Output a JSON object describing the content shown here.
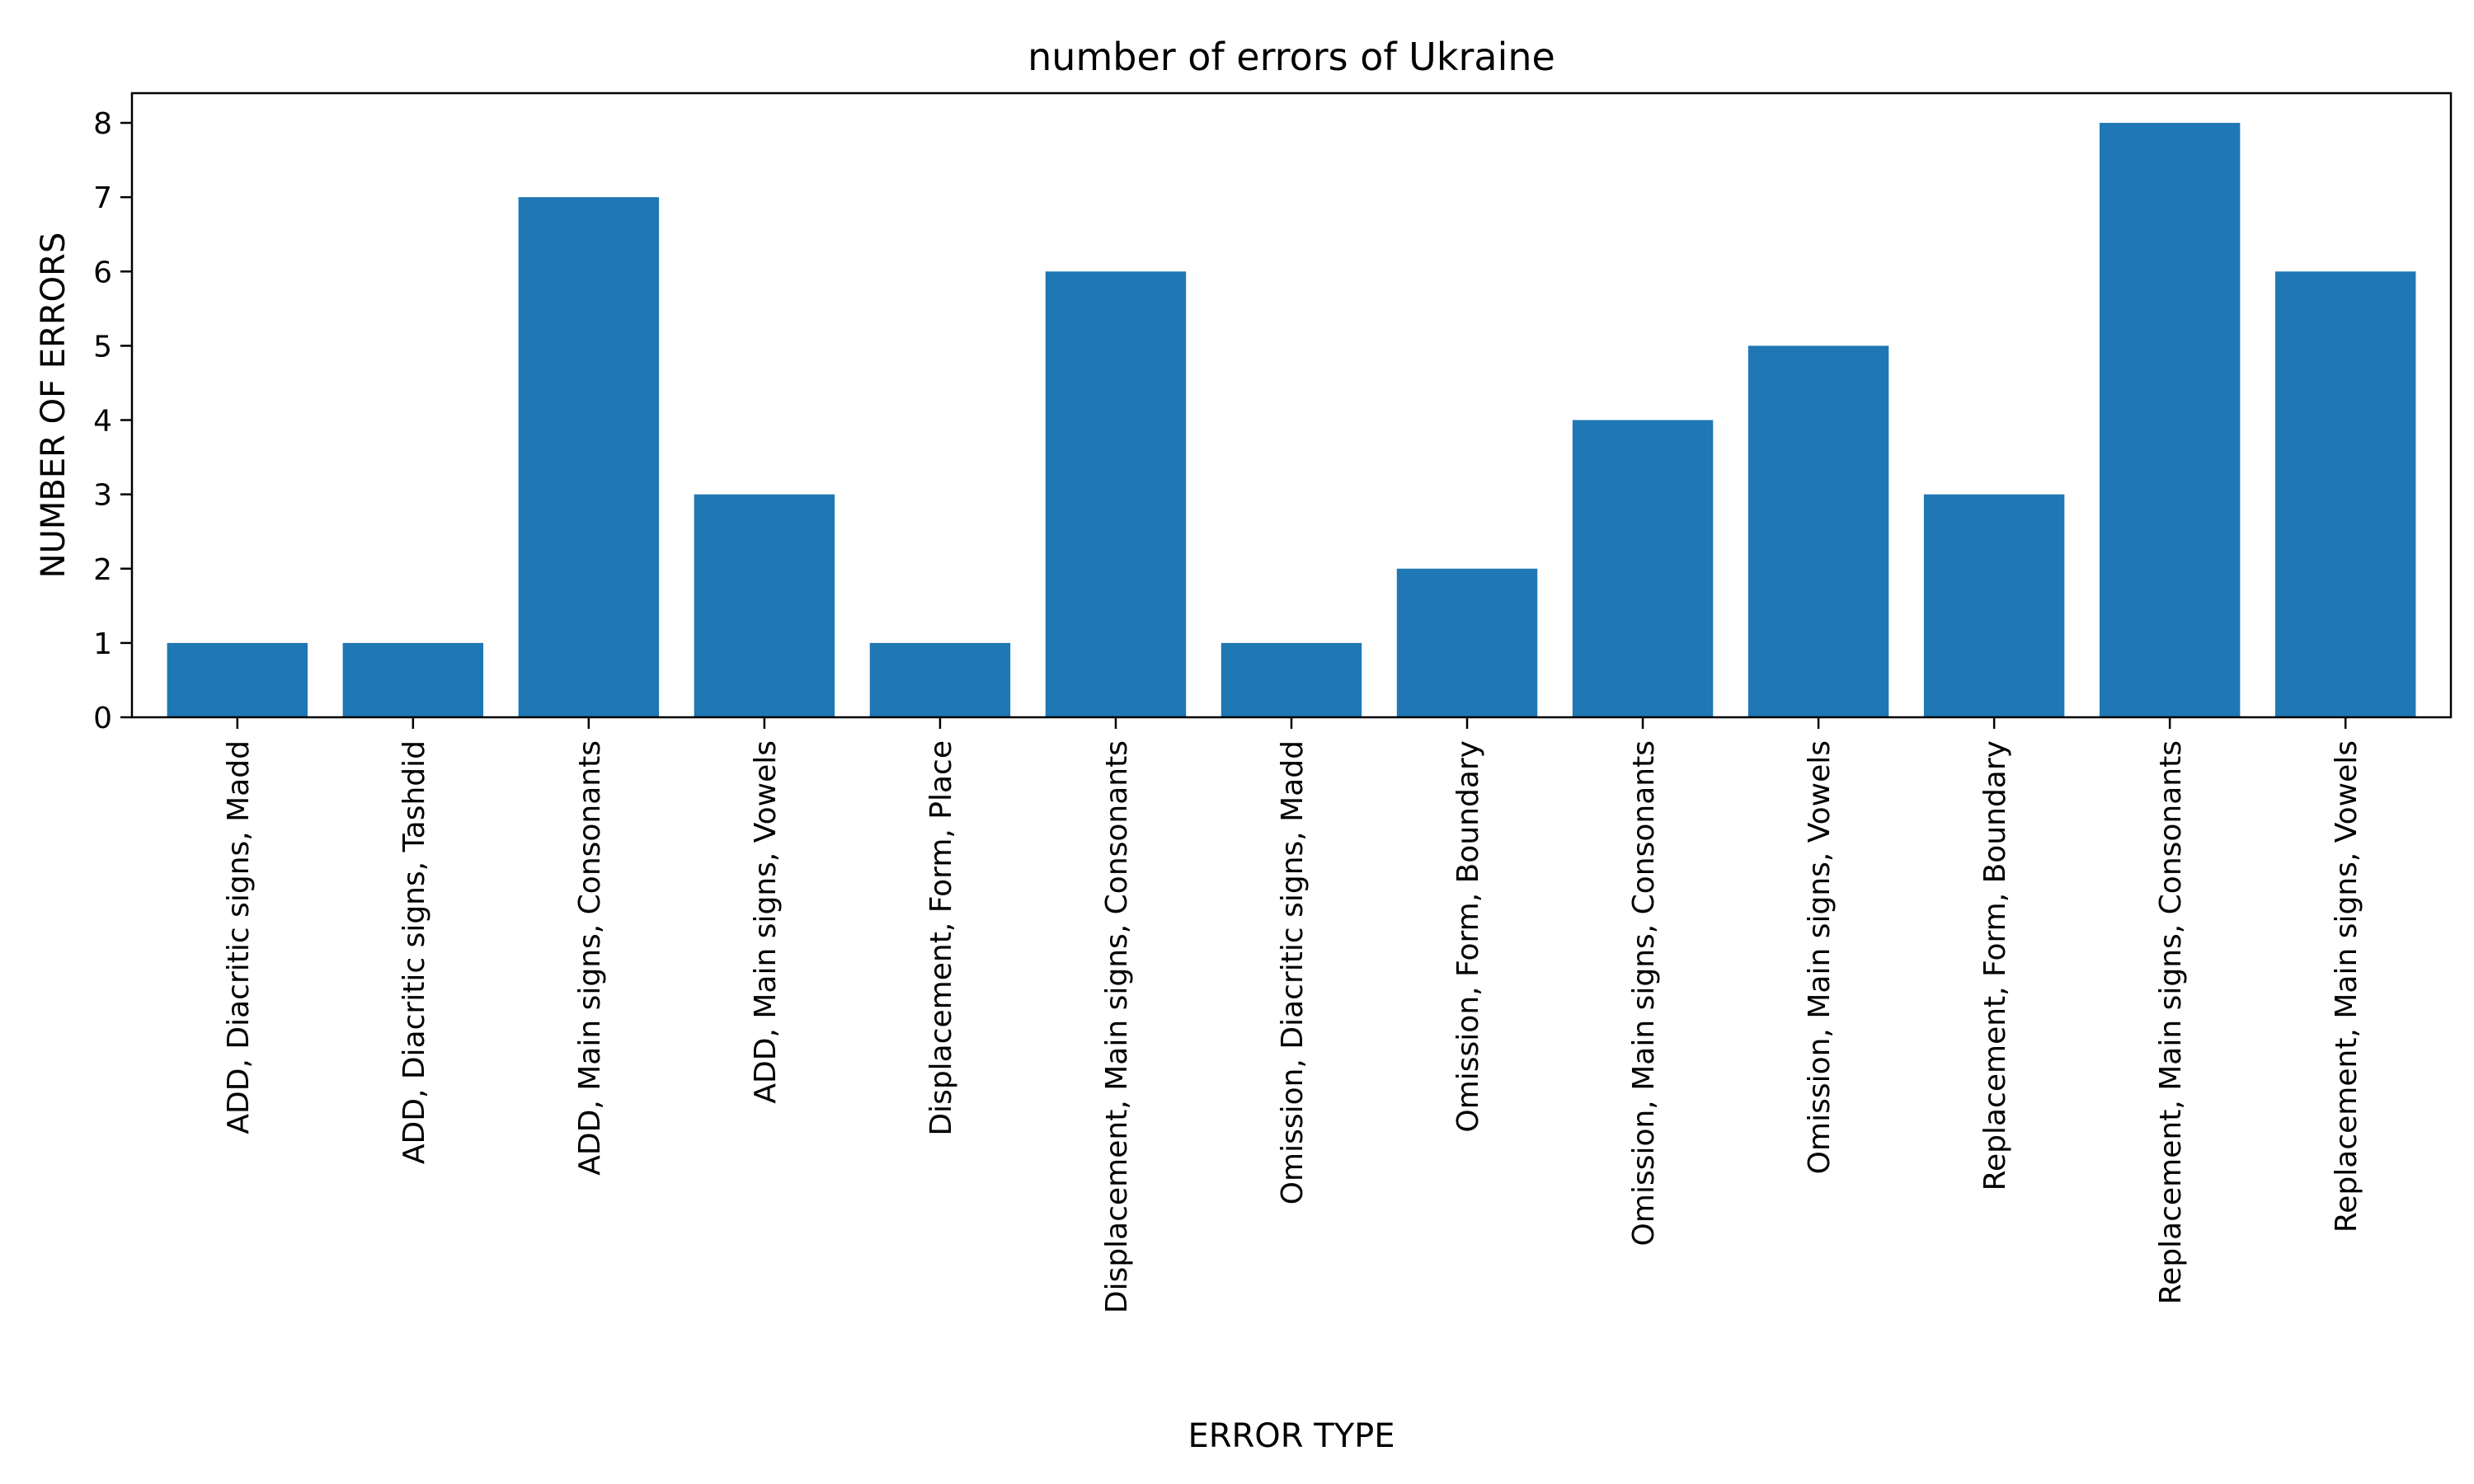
{
  "chart_data": {
    "type": "bar",
    "title": "number of errors of Ukraine",
    "xlabel": "ERROR TYPE",
    "ylabel": "NUMBER OF ERRORS",
    "categories": [
      "ADD, Diacritic signs, Madd",
      "ADD, Diacritic signs, Tashdid",
      "ADD, Main signs, Consonants",
      "ADD, Main signs, Vowels",
      "Displacement, Form, Place",
      "Displacement, Main signs, Consonants",
      "Omission, Diacritic signs, Madd",
      "Omission, Form, Boundary",
      "Omission, Main signs, Consonants",
      "Omission, Main signs, Vowels",
      "Replacement, Form, Boundary",
      "Replacement, Main signs, Consonants",
      "Replacement, Main signs, Vowels"
    ],
    "values": [
      1,
      1,
      7,
      3,
      1,
      6,
      1,
      2,
      4,
      5,
      3,
      8,
      6
    ],
    "ylim": [
      0,
      8.4
    ],
    "yticks": [
      0,
      1,
      2,
      3,
      4,
      5,
      6,
      7,
      8
    ],
    "bar_color": "#1f77b4",
    "grid": false,
    "legend": "none"
  }
}
